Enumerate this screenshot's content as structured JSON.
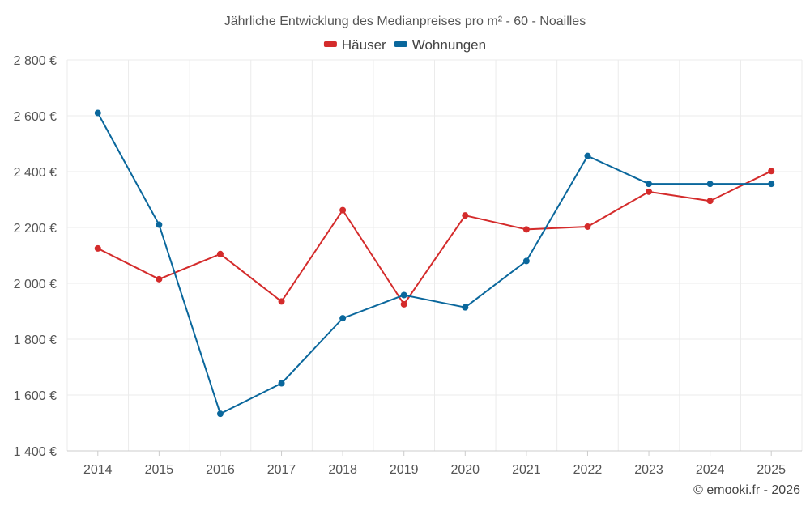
{
  "chart_data": {
    "type": "line",
    "title": "Jährliche Entwicklung des Medianpreises pro m² - 60 - Noailles",
    "categories": [
      "2014",
      "2015",
      "2016",
      "2017",
      "2018",
      "2019",
      "2020",
      "2021",
      "2022",
      "2023",
      "2024",
      "2025"
    ],
    "series": [
      {
        "name": "Häuser",
        "color": "#d42b2b",
        "values": [
          2125,
          2015,
          2105,
          1935,
          2262,
          1925,
          2243,
          2193,
          2203,
          2328,
          2295,
          2402
        ]
      },
      {
        "name": "Wohnungen",
        "color": "#0a679c",
        "values": [
          2610,
          2210,
          1533,
          1642,
          1875,
          1958,
          1914,
          2080,
          2456,
          2356,
          2356,
          2356
        ]
      }
    ],
    "ylim": [
      1400,
      2800
    ],
    "yticks": [
      1400,
      1600,
      1800,
      2000,
      2200,
      2400,
      2600,
      2800
    ],
    "ytick_labels": [
      "1 400 €",
      "1 600 €",
      "1 800 €",
      "2 000 €",
      "2 200 €",
      "2 400 €",
      "2 600 €",
      "2 800 €"
    ],
    "xlabel": "",
    "ylabel": "",
    "grid": true,
    "legend_position": "top-center"
  },
  "credit": "© emooki.fr - 2026"
}
